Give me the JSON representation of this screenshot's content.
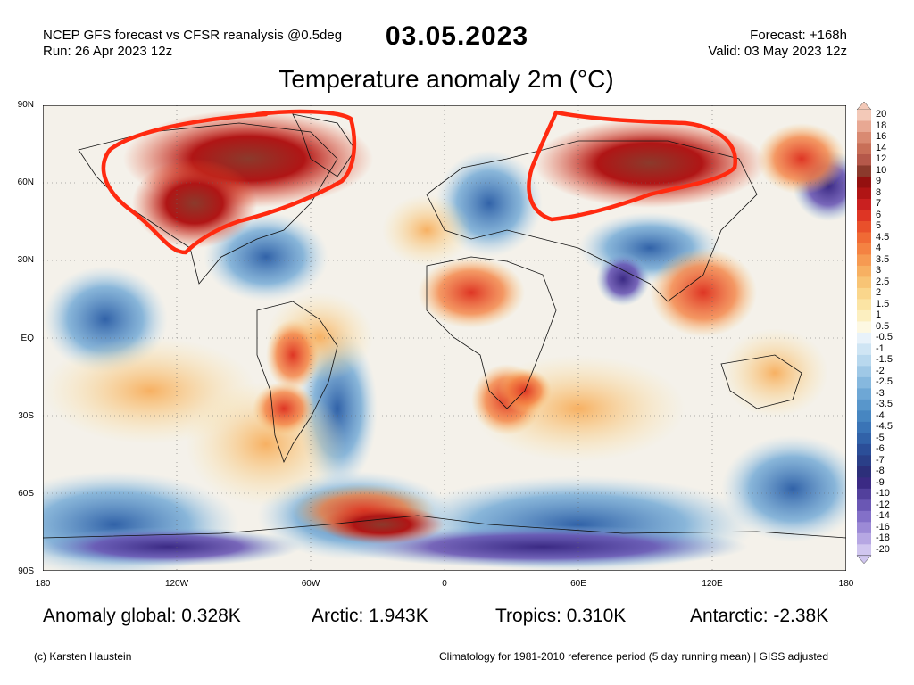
{
  "header": {
    "left_line1": "NCEP GFS forecast vs CFSR reanalysis @0.5deg",
    "left_line2": "Run: 26 Apr 2023 12z",
    "date": "03.05.2023",
    "right_line1": "Forecast: +168h",
    "right_line2": "Valid: 03 May 2023 12z"
  },
  "title": "Temperature anomaly 2m (°C)",
  "axes": {
    "y_labels": [
      "90N",
      "60N",
      "30N",
      "EQ",
      "30S",
      "60S",
      "90S"
    ],
    "x_labels": [
      "180",
      "120W",
      "60W",
      "0",
      "60E",
      "120E",
      "180"
    ]
  },
  "colorbar": {
    "labels": [
      "20",
      "18",
      "16",
      "14",
      "12",
      "10",
      "9",
      "8",
      "7",
      "6",
      "5",
      "4.5",
      "4",
      "3.5",
      "3",
      "2.5",
      "2",
      "1.5",
      "1",
      "0.5",
      "-0.5",
      "-1",
      "-1.5",
      "-2",
      "-2.5",
      "-3",
      "-3.5",
      "-4",
      "-4.5",
      "-5",
      "-6",
      "-7",
      "-8",
      "-9",
      "-10",
      "-12",
      "-14",
      "-16",
      "-18",
      "-20"
    ],
    "colors": [
      "#f3c9b8",
      "#e8a893",
      "#d98a72",
      "#c86f58",
      "#b5584a",
      "#8b3a2c",
      "#94100f",
      "#b01515",
      "#c92020",
      "#de3524",
      "#e9502b",
      "#f06a35",
      "#f48242",
      "#f69a52",
      "#f7b062",
      "#f8c475",
      "#fad68c",
      "#fbe4a4",
      "#fcefc0",
      "#fdf8e2",
      "#e8f2fa",
      "#cfe5f4",
      "#b8d8ee",
      "#9fc8e6",
      "#86b8de",
      "#6ea7d5",
      "#5896cb",
      "#4786c1",
      "#3a74b6",
      "#3162a8",
      "#2b4e98",
      "#2a3f88",
      "#2c2f7a",
      "#3b2a84",
      "#52409c",
      "#6a57b4",
      "#8370c8",
      "#9c8ad6",
      "#b6a7e3",
      "#d0c6ef"
    ]
  },
  "stats": {
    "global": "Anomaly global: 0.328K",
    "arctic": "Arctic: 1.943K",
    "tropics": "Tropics: 0.310K",
    "antarctic": "Antarctic: -2.38K"
  },
  "footer": {
    "copyright": "(c) Karsten Haustein",
    "climatology": "Climatology for 1981-2010 reference period (5 day running mean) | GISS adjusted"
  }
}
